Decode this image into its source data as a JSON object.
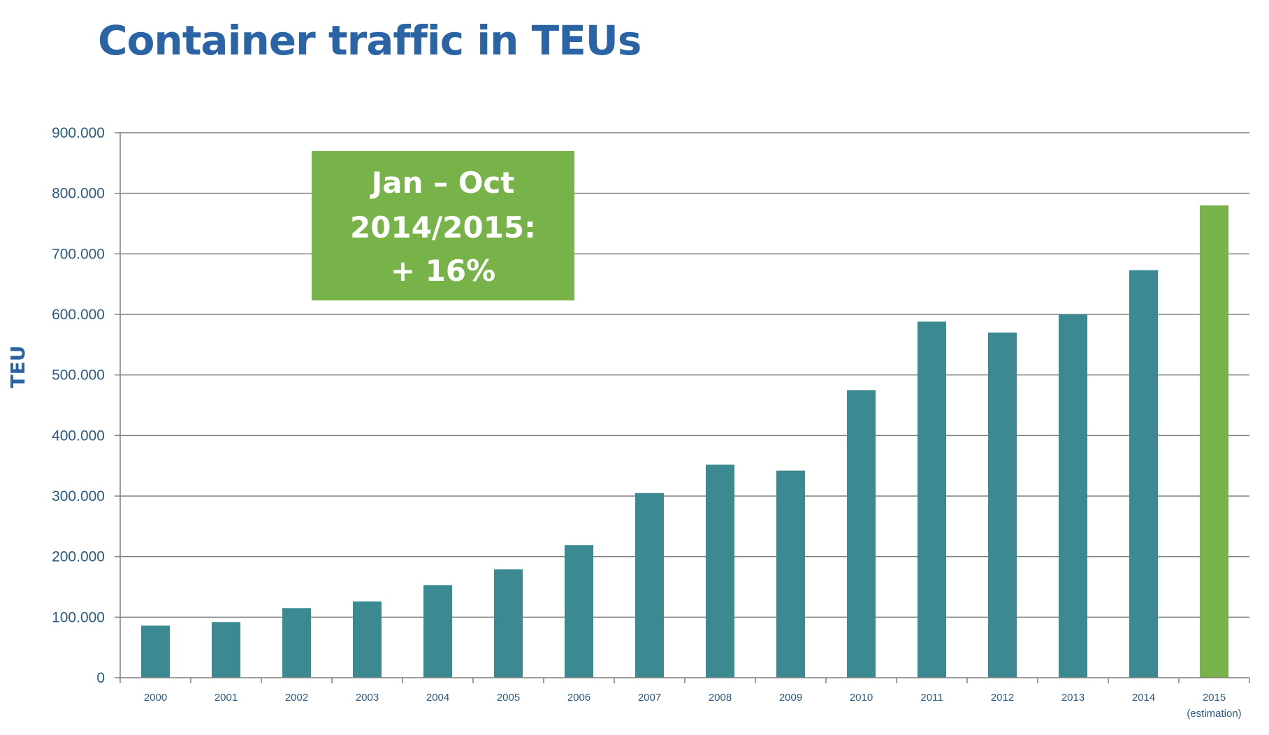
{
  "title": "Container traffic in TEUs",
  "colors": {
    "bar": "#3c8a91",
    "highlight": "#78b34a",
    "title": "#2a64a5",
    "grid": "#7f7f7f",
    "tick_text": "#2c5a80"
  },
  "callout": {
    "lines": [
      "Jan – Oct",
      "2014/2015:",
      "+ 16%"
    ]
  },
  "chart_data": {
    "type": "bar",
    "ylabel": "TEU",
    "xlabel": "",
    "ylim": [
      0,
      900000
    ],
    "yticks": [
      {
        "value": 0,
        "label": "0"
      },
      {
        "value": 100000,
        "label": "100.000"
      },
      {
        "value": 200000,
        "label": "200.000"
      },
      {
        "value": 300000,
        "label": "300.000"
      },
      {
        "value": 400000,
        "label": "400.000"
      },
      {
        "value": 500000,
        "label": "500.000"
      },
      {
        "value": 600000,
        "label": "600.000"
      },
      {
        "value": 700000,
        "label": "700.000"
      },
      {
        "value": 800000,
        "label": "800.000"
      },
      {
        "value": 900000,
        "label": "900.000"
      }
    ],
    "grid": true,
    "categories": [
      "2000",
      "2001",
      "2002",
      "2003",
      "2004",
      "2005",
      "2006",
      "2007",
      "2008",
      "2009",
      "2010",
      "2011",
      "2012",
      "2013",
      "2014",
      "2015"
    ],
    "category_sublabels": [
      "",
      "",
      "",
      "",
      "",
      "",
      "",
      "",
      "",
      "",
      "",
      "",
      "",
      "",
      "",
      "(estimation)"
    ],
    "values": [
      86000,
      92000,
      115000,
      126000,
      153000,
      179000,
      219000,
      305000,
      352000,
      342000,
      475000,
      588000,
      570000,
      600000,
      673000,
      780000
    ],
    "highlight_category": "2015"
  }
}
